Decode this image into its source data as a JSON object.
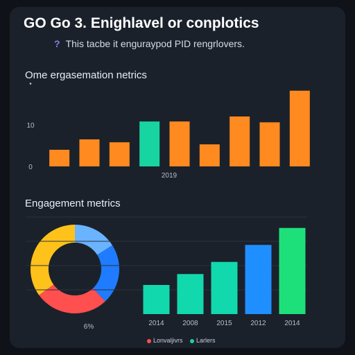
{
  "header": {
    "title": "GO Go 3. Enighlavel or conplotics",
    "subtitle_icon": "?",
    "subtitle": "This tacbe it enguraypod PID rengrlovers."
  },
  "chart_data": [
    {
      "type": "bar",
      "title": "Ome ergasemation netrics",
      "y_ticks": [
        "0",
        "10",
        "•"
      ],
      "x_label": "2019",
      "ylim": [
        0,
        20
      ],
      "values": [
        4,
        6.5,
        5.8,
        10.8,
        10.8,
        5.3,
        12,
        10.6,
        18.2
      ],
      "colors": [
        "#ff8a1f",
        "#ff8a1f",
        "#ff8a1f",
        "#18d4a0",
        "#ff8a1f",
        "#ff8a1f",
        "#ff8a1f",
        "#ff8a1f",
        "#ff8a1f"
      ]
    },
    {
      "type": "pie",
      "title": "Engagement metrics",
      "center_label": "6%",
      "slices": [
        {
          "value": 16,
          "color": "#6ab3ff"
        },
        {
          "value": 22,
          "color": "#1f7bff"
        },
        {
          "value": 27,
          "color": "#ff4f4f"
        },
        {
          "value": 35,
          "color": "#ffc21a"
        }
      ]
    },
    {
      "type": "bar",
      "categories": [
        "2014",
        "2008",
        "2015",
        "2012",
        "2014"
      ],
      "values": [
        24,
        33,
        43,
        57,
        71
      ],
      "ylim": [
        0,
        80
      ],
      "colors": [
        "#12d8ad",
        "#12d8ad",
        "#12d8ad",
        "#1f8fff",
        "#1ee07a"
      ],
      "legend": [
        {
          "label": "Lonvaljivrs",
          "color": "#ff4f4f"
        },
        {
          "label": "Larlers",
          "color": "#18d4a0"
        }
      ]
    }
  ]
}
